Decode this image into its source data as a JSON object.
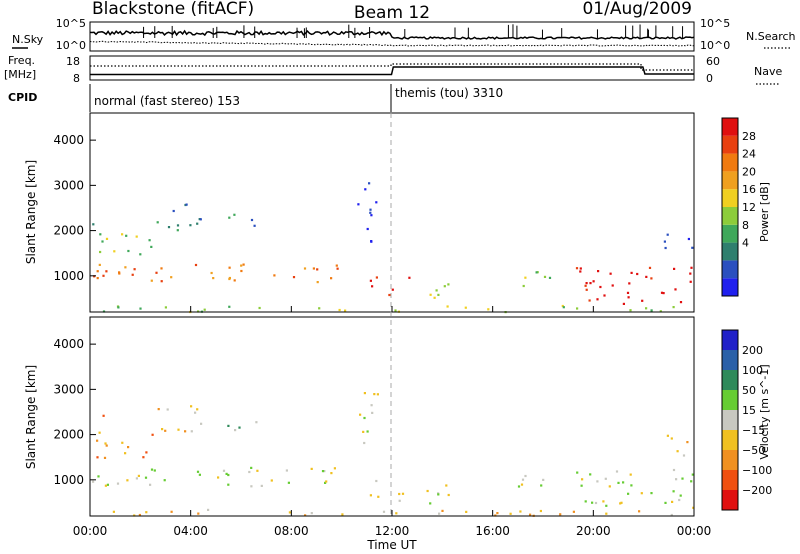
{
  "header": {
    "station": "Blackstone (fitACF)",
    "beam": "Beam 12",
    "date": "01/Aug/2009"
  },
  "top_panel": {
    "nsky_label": "N.Sky",
    "nsearch_label": "N.Search",
    "left_ticks": [
      "10^5",
      "10^0"
    ],
    "right_ticks": [
      "10^5",
      "10^0"
    ]
  },
  "freq_panel": {
    "freq_label": "Freq.",
    "freq_unit": "[MHz]",
    "nave_label": "Nave",
    "left_ticks": [
      "18",
      "8"
    ],
    "right_ticks": [
      "60",
      "0"
    ],
    "freq_series": [
      {
        "t": 0.0,
        "freq": 10.3
      },
      {
        "t": 11.98,
        "freq": 10.3
      },
      {
        "t": 12.05,
        "freq": 13.4
      },
      {
        "t": 21.97,
        "freq": 13.4
      },
      {
        "t": 22.05,
        "freq": 10.5
      },
      {
        "t": 24.0,
        "freq": 10.5
      }
    ]
  },
  "cpid": {
    "label": "CPID",
    "segments": [
      {
        "start": 0.0,
        "end": 12.0,
        "name": "normal (fast stereo) 153"
      },
      {
        "start": 12.0,
        "end": 24.0,
        "name": "themis (tou) 3310"
      }
    ]
  },
  "colorbars": {
    "power": {
      "title": "Power [dB]",
      "labels": [
        "28",
        "24",
        "20",
        "16",
        "12",
        "8",
        "4"
      ],
      "colors": [
        "#2020ee",
        "#2a4fbf",
        "#2f7f6e",
        "#3fa85a",
        "#8ccc3a",
        "#f0d020",
        "#f0a020",
        "#f07a10",
        "#e84010",
        "#e01010"
      ]
    },
    "velocity": {
      "title": "Velocity [m s^-1]",
      "labels": [
        "200",
        "100",
        "50",
        "15",
        "−15",
        "−50",
        "−100",
        "−200"
      ],
      "colors": [
        "#2020c8",
        "#2a60a8",
        "#2f8a5a",
        "#66cc33",
        "#c8c8c0",
        "#f0c020",
        "#f09020",
        "#f05010",
        "#e01010"
      ]
    }
  },
  "chart_data": [
    {
      "type": "heatmap",
      "name": "power",
      "ylabel": "Slant Range [km]",
      "y_ticks": [
        "1000",
        "2000",
        "3000",
        "4000"
      ],
      "xlim": [
        0,
        24
      ],
      "ylim": [
        200,
        4600
      ],
      "regions": [
        {
          "t0": 0.0,
          "t1": 10.1,
          "r0": 880,
          "r1": 1300,
          "level": 3
        },
        {
          "t0": 0.2,
          "t1": 2.6,
          "r0": 1500,
          "r1": 2100,
          "level": 2
        },
        {
          "t0": 2.6,
          "t1": 4.4,
          "r0": 2000,
          "r1": 2700,
          "level": 1
        },
        {
          "t0": 0.0,
          "t1": 0.5,
          "r0": 2150,
          "r1": 2450,
          "level": 1
        },
        {
          "t0": 5.3,
          "t1": 6.6,
          "r0": 2000,
          "r1": 2400,
          "level": 1
        },
        {
          "t0": 0.0,
          "t1": 24.0,
          "r0": 220,
          "r1": 360,
          "level": 2
        },
        {
          "t0": 11.0,
          "t1": 12.7,
          "r0": 550,
          "r1": 1000,
          "level": 4
        },
        {
          "t0": 10.6,
          "t1": 11.4,
          "r0": 1700,
          "r1": 3200,
          "level": 0
        },
        {
          "t0": 13.0,
          "t1": 14.4,
          "r0": 500,
          "r1": 1000,
          "level": 2
        },
        {
          "t0": 16.7,
          "t1": 18.4,
          "r0": 750,
          "r1": 1200,
          "level": 2
        },
        {
          "t0": 19.3,
          "t1": 24.0,
          "r0": 400,
          "r1": 1250,
          "level": 4
        },
        {
          "t0": 22.7,
          "t1": 24.0,
          "r0": 1500,
          "r1": 2000,
          "level": 0
        }
      ]
    },
    {
      "type": "heatmap",
      "name": "velocity",
      "ylabel": "Slant Range [km]",
      "y_ticks": [
        "1000",
        "2000",
        "3000",
        "4000"
      ],
      "xlim": [
        0,
        24
      ],
      "ylim": [
        200,
        4600
      ],
      "x_ticks": [
        "00:00",
        "04:00",
        "08:00",
        "12:00",
        "16:00",
        "20:00",
        "00:00"
      ],
      "xlabel": "Time UT",
      "regions": [
        {
          "t0": 0.0,
          "t1": 10.1,
          "r0": 880,
          "r1": 1300,
          "level": 4
        },
        {
          "t0": 0.2,
          "t1": 2.6,
          "r0": 1500,
          "r1": 2100,
          "level": 6
        },
        {
          "t0": 2.6,
          "t1": 4.4,
          "r0": 2000,
          "r1": 2700,
          "level": 5
        },
        {
          "t0": 0.0,
          "t1": 0.5,
          "r0": 2150,
          "r1": 2450,
          "level": 6
        },
        {
          "t0": 5.3,
          "t1": 6.6,
          "r0": 2000,
          "r1": 2400,
          "level": 3
        },
        {
          "t0": 0.0,
          "t1": 24.0,
          "r0": 220,
          "r1": 360,
          "level": 5
        },
        {
          "t0": 11.0,
          "t1": 12.7,
          "r0": 550,
          "r1": 1000,
          "level": 4
        },
        {
          "t0": 10.6,
          "t1": 11.4,
          "r0": 1700,
          "r1": 3200,
          "level": 4
        },
        {
          "t0": 13.0,
          "t1": 14.4,
          "r0": 500,
          "r1": 1000,
          "level": 4
        },
        {
          "t0": 16.7,
          "t1": 18.4,
          "r0": 750,
          "r1": 1200,
          "level": 4
        },
        {
          "t0": 19.3,
          "t1": 24.0,
          "r0": 400,
          "r1": 1250,
          "level": 4
        },
        {
          "t0": 22.7,
          "t1": 24.0,
          "r0": 1500,
          "r1": 2000,
          "level": 5
        }
      ]
    }
  ]
}
